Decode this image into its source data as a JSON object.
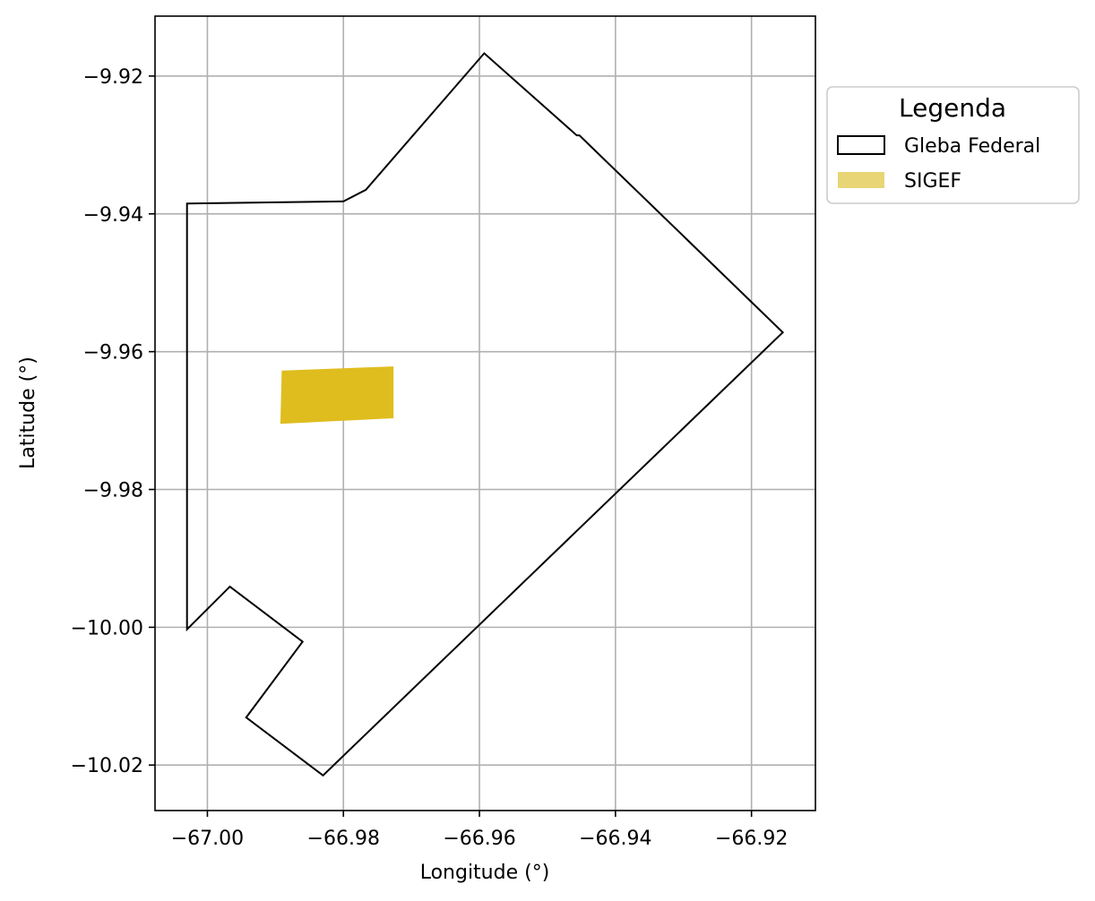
{
  "chart_data": {
    "type": "map",
    "xlabel": "Longitude (°)",
    "ylabel": "Latitude (°)",
    "xlim": [
      -67.0077,
      -66.9106
    ],
    "ylim": [
      -10.0266,
      -9.9113
    ],
    "grid": true,
    "x_ticks": [
      -67.0,
      -66.98,
      -66.96,
      -66.94,
      -66.92
    ],
    "x_tick_labels": [
      "−67.00",
      "−66.98",
      "−66.96",
      "−66.94",
      "−66.92"
    ],
    "y_ticks": [
      -9.92,
      -9.94,
      -9.96,
      -9.98,
      -10.0,
      -10.02
    ],
    "y_tick_labels": [
      "−9.92",
      "−9.94",
      "−9.96",
      "−9.98",
      "−10.00",
      "−10.02"
    ],
    "legend": {
      "title": "Legenda",
      "placement": "outside-upper-right",
      "items": [
        {
          "label": "Gleba Federal",
          "style": "outline",
          "color": "#000000"
        },
        {
          "label": "SIGEF",
          "style": "fill",
          "color": "#e8d575"
        }
      ]
    },
    "layers": [
      {
        "name": "Gleba Federal",
        "kind": "polygon-outline",
        "stroke": "#000000",
        "coordinates": [
          [
            -67.003,
            -9.9385
          ],
          [
            -66.98,
            -9.9382
          ],
          [
            -66.9767,
            -9.9365
          ],
          [
            -66.9593,
            -9.9167
          ],
          [
            -66.9457,
            -9.9286
          ],
          [
            -66.9453,
            -9.9286
          ],
          [
            -66.9154,
            -9.9572
          ],
          [
            -66.983,
            -10.0215
          ],
          [
            -66.9943,
            -10.0131
          ],
          [
            -66.986,
            -10.0021
          ],
          [
            -66.9967,
            -9.9941
          ],
          [
            -67.003,
            -10.0003
          ],
          [
            -67.003,
            -9.9385
          ]
        ]
      },
      {
        "name": "SIGEF",
        "kind": "polygon-fill",
        "fill": "#dfbd1f",
        "coordinates": [
          [
            -66.989,
            -9.9628
          ],
          [
            -66.9727,
            -9.9622
          ],
          [
            -66.9727,
            -9.9696
          ],
          [
            -66.9892,
            -9.9704
          ],
          [
            -66.989,
            -9.9628
          ]
        ]
      }
    ]
  }
}
